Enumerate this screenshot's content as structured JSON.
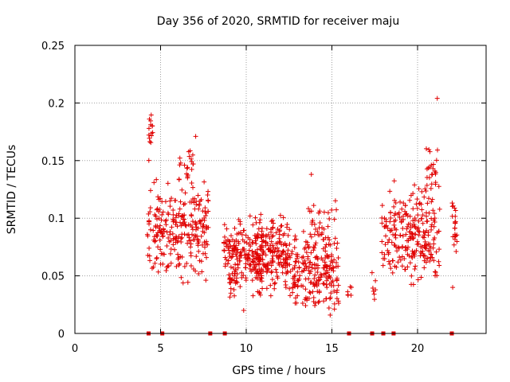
{
  "chart_data": {
    "type": "scatter",
    "title": "Day 356 of 2020, SRMTID for receiver maju",
    "xlabel": "GPS time / hours",
    "ylabel": "SRMTID / TECUs",
    "xlim": [
      0,
      24
    ],
    "ylim": [
      0,
      0.25
    ],
    "xticks": [
      0,
      5,
      10,
      15,
      20
    ],
    "xtick_labels": [
      "0",
      "5",
      "10",
      "15",
      "20"
    ],
    "yticks": [
      0,
      0.05,
      0.1,
      0.15,
      0.2,
      0.25
    ],
    "ytick_labels": [
      "0",
      "0.05",
      "0.1",
      "0.15",
      "0.2",
      "0.25"
    ],
    "grid": true,
    "marker": "+",
    "series_color": "#e00000",
    "axis_markers": {
      "description": "square markers on the x-axis at y=0",
      "x": [
        4.3,
        5.1,
        7.9,
        8.75,
        16.0,
        17.35,
        18.0,
        18.6,
        22.0
      ]
    },
    "clusters": [
      {
        "x_start": 4.2,
        "x_end": 7.8,
        "y_center": 0.09,
        "y_spread": 0.035,
        "count": 260,
        "seed": 11
      },
      {
        "x_start": 4.3,
        "x_end": 4.55,
        "y_center": 0.17,
        "y_spread": 0.015,
        "count": 14,
        "seed": 12
      },
      {
        "x_start": 6.0,
        "x_end": 7.2,
        "y_center": 0.145,
        "y_spread": 0.015,
        "count": 20,
        "seed": 13
      },
      {
        "x_start": 8.7,
        "x_end": 11.0,
        "y_center": 0.065,
        "y_spread": 0.025,
        "count": 200,
        "seed": 14
      },
      {
        "x_start": 10.5,
        "x_end": 12.5,
        "y_center": 0.07,
        "y_spread": 0.025,
        "count": 180,
        "seed": 15
      },
      {
        "x_start": 12.5,
        "x_end": 15.4,
        "y_center": 0.055,
        "y_spread": 0.028,
        "count": 230,
        "seed": 16
      },
      {
        "x_start": 13.6,
        "x_end": 15.3,
        "y_center": 0.1,
        "y_spread": 0.015,
        "count": 25,
        "seed": 17
      },
      {
        "x_start": 15.9,
        "x_end": 16.2,
        "y_center": 0.038,
        "y_spread": 0.008,
        "count": 6,
        "seed": 18
      },
      {
        "x_start": 17.3,
        "x_end": 17.55,
        "y_center": 0.04,
        "y_spread": 0.012,
        "count": 7,
        "seed": 19
      },
      {
        "x_start": 17.9,
        "x_end": 21.3,
        "y_center": 0.085,
        "y_spread": 0.03,
        "count": 260,
        "seed": 20
      },
      {
        "x_start": 20.5,
        "x_end": 21.2,
        "y_center": 0.14,
        "y_spread": 0.017,
        "count": 22,
        "seed": 21
      },
      {
        "x_start": 22.0,
        "x_end": 22.3,
        "y_center": 0.095,
        "y_spread": 0.022,
        "count": 22,
        "seed": 22
      }
    ],
    "points": [
      {
        "x": 21.15,
        "y": 0.204
      },
      {
        "x": 7.05,
        "y": 0.171
      },
      {
        "x": 4.35,
        "y": 0.186
      },
      {
        "x": 13.8,
        "y": 0.138
      },
      {
        "x": 22.05,
        "y": 0.04
      },
      {
        "x": 9.85,
        "y": 0.02
      },
      {
        "x": 14.9,
        "y": 0.016
      }
    ]
  }
}
